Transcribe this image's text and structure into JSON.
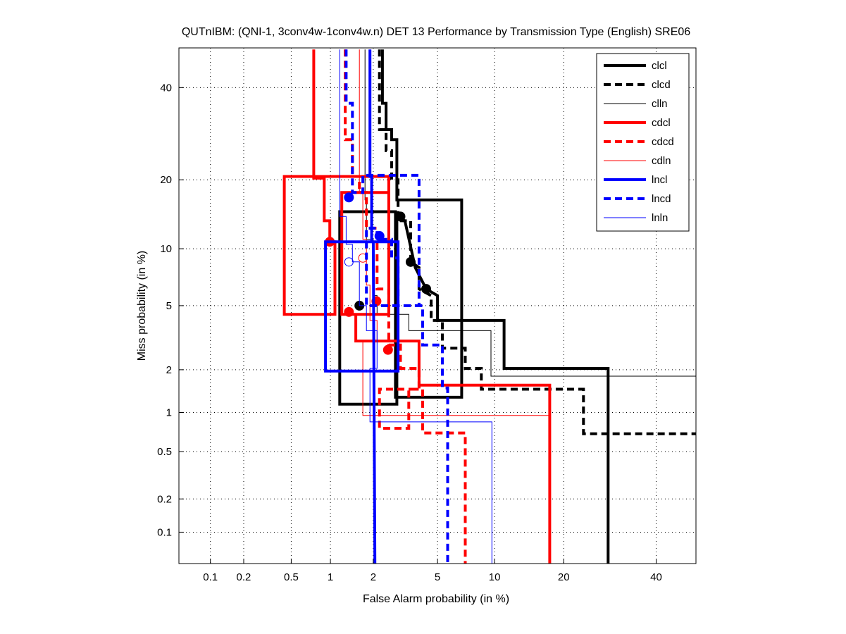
{
  "chart_data": {
    "type": "line",
    "title": "QUTnIBM: (QNI-1, 3conv4w-1conv4w.n) DET 13 Performance by Transmission Type (English) SRE06",
    "xlabel": "False Alarm probability (in %)",
    "ylabel": "Miss probability (in %)",
    "xscale": "normal-deviate",
    "yscale": "normal-deviate",
    "xlim": [
      0.05,
      50
    ],
    "ylim": [
      0.05,
      50
    ],
    "xticks": [
      0.1,
      0.2,
      0.5,
      1,
      2,
      5,
      10,
      20,
      40
    ],
    "xtick_labels": [
      "0.1",
      "0.2",
      "0.5",
      "1",
      "2",
      "5",
      "10",
      "20",
      "40"
    ],
    "yticks": [
      0.1,
      0.2,
      0.5,
      1,
      2,
      5,
      10,
      20,
      40
    ],
    "ytick_labels": [
      "0.1",
      "0.2",
      "0.5",
      "1",
      "2",
      "5",
      "10",
      "20",
      "40"
    ],
    "grid": true,
    "legend_position": "top-right",
    "series": [
      {
        "name": "clcl",
        "color": "#000000",
        "style": "solid-thick",
        "points": [
          [
            2.3,
            49.6
          ],
          [
            2.3,
            36.2
          ],
          [
            2.43,
            36.2
          ],
          [
            2.43,
            30.1
          ],
          [
            2.64,
            30.1
          ],
          [
            2.64,
            27.9
          ],
          [
            2.85,
            27.9
          ],
          [
            2.85,
            16.6
          ],
          [
            6.8,
            16.6
          ],
          [
            6.8,
            1.29
          ],
          [
            2.79,
            1.29
          ],
          [
            2.79,
            14.8
          ],
          [
            1.17,
            14.8
          ],
          [
            1.17,
            1.15
          ],
          [
            2.85,
            1.15
          ],
          [
            2.85,
            14.1
          ],
          [
            3.2,
            13.5
          ],
          [
            3.7,
            8.05
          ],
          [
            4.3,
            6.2
          ],
          [
            5.0,
            5.7
          ],
          [
            5.0,
            4.1
          ],
          [
            11.1,
            4.1
          ],
          [
            11.1,
            2.04
          ],
          [
            28.8,
            2.04
          ],
          [
            28.8,
            0.05
          ]
        ],
        "marker_points": [
          [
            3.0,
            14.1
          ],
          [
            4.3,
            6.2
          ]
        ],
        "marker": "circle/triangle"
      },
      {
        "name": "clcd",
        "color": "#000000",
        "style": "dashed-thick",
        "points": [
          [
            2.2,
            49.6
          ],
          [
            2.2,
            30.1
          ],
          [
            2.43,
            30.1
          ],
          [
            2.43,
            25.6
          ],
          [
            2.64,
            25.6
          ],
          [
            2.64,
            20
          ],
          [
            2.9,
            20
          ],
          [
            2.9,
            13.5
          ],
          [
            3.47,
            13.5
          ],
          [
            3.47,
            8.6
          ],
          [
            3.9,
            8.05
          ],
          [
            3.9,
            6.2
          ],
          [
            4.6,
            5.7
          ],
          [
            4.6,
            4.1
          ],
          [
            5.33,
            4.1
          ],
          [
            5.33,
            2.77
          ],
          [
            7.1,
            2.77
          ],
          [
            7.1,
            2.04
          ],
          [
            8.6,
            2.04
          ],
          [
            8.6,
            1.47
          ],
          [
            23.7,
            1.47
          ],
          [
            23.7,
            0.69
          ],
          [
            50,
            0.69
          ]
        ],
        "marker_points": [
          [
            3.47,
            8.6
          ]
        ],
        "marker": "circle"
      },
      {
        "name": "clln",
        "color": "#000000",
        "style": "solid-thin",
        "points": [
          [
            1.76,
            49.6
          ],
          [
            1.76,
            16.6
          ],
          [
            1.8,
            16.6
          ],
          [
            1.8,
            11.1
          ],
          [
            2.0,
            11.1
          ],
          [
            2.0,
            5.7
          ],
          [
            2.12,
            5.7
          ],
          [
            2.12,
            4.45
          ],
          [
            3.38,
            4.45
          ],
          [
            3.38,
            3.56
          ],
          [
            9.6,
            3.56
          ],
          [
            9.6,
            1.81
          ],
          [
            50,
            1.81
          ]
        ],
        "marker_points": [
          [
            1.61,
            5.0
          ]
        ],
        "marker": "diamond"
      },
      {
        "name": "cdcl",
        "color": "#ff0000",
        "style": "solid-thick",
        "points": [
          [
            0.75,
            49.6
          ],
          [
            0.75,
            20.3
          ],
          [
            0.9,
            20.3
          ],
          [
            0.9,
            13.5
          ],
          [
            0.99,
            13.5
          ],
          [
            0.99,
            10.8
          ],
          [
            1.08,
            10.8
          ],
          [
            1.08,
            4.45
          ],
          [
            0.44,
            4.45
          ],
          [
            0.44,
            20.6
          ],
          [
            2.53,
            20.6
          ],
          [
            2.53,
            4.45
          ],
          [
            1.21,
            4.45
          ],
          [
            1.21,
            17.8
          ],
          [
            2.53,
            17.8
          ],
          [
            2.53,
            4.45
          ],
          [
            1.36,
            4.45
          ],
          [
            1.52,
            4.45
          ],
          [
            1.52,
            3.07
          ],
          [
            3.9,
            3.07
          ],
          [
            3.9,
            1.57
          ],
          [
            17.6,
            1.57
          ],
          [
            17.6,
            0.05
          ]
        ],
        "marker_points": [
          [
            0.99,
            10.8
          ],
          [
            1.36,
            4.6
          ],
          [
            2.1,
            5.3
          ]
        ],
        "marker": "circle"
      },
      {
        "name": "cdcd",
        "color": "#ff0000",
        "style": "dashed-thick",
        "points": [
          [
            1.28,
            49.6
          ],
          [
            1.28,
            27.9
          ],
          [
            1.44,
            27.9
          ],
          [
            1.44,
            20.6
          ],
          [
            1.61,
            20.6
          ],
          [
            1.61,
            17.8
          ],
          [
            1.8,
            17.8
          ],
          [
            1.8,
            12.5
          ],
          [
            2.12,
            12.5
          ],
          [
            2.12,
            6.2
          ],
          [
            2.53,
            6.2
          ],
          [
            2.53,
            2.9
          ],
          [
            3.0,
            2.9
          ],
          [
            3.0,
            2.04
          ],
          [
            3.9,
            2.04
          ],
          [
            3.9,
            1.47
          ],
          [
            2.2,
            1.47
          ],
          [
            2.2,
            0.76
          ],
          [
            3.38,
            0.76
          ],
          [
            3.38,
            1.47
          ],
          [
            4.1,
            1.47
          ],
          [
            4.1,
            0.7
          ],
          [
            7.1,
            0.7
          ],
          [
            7.1,
            0.05
          ]
        ],
        "marker_points": [
          [
            2.5,
            2.7
          ]
        ],
        "marker": "triangle"
      },
      {
        "name": "cdln",
        "color": "#ff0000",
        "style": "solid-thin",
        "points": [
          [
            1.61,
            49.6
          ],
          [
            1.61,
            17.8
          ],
          [
            1.7,
            17.8
          ],
          [
            1.7,
            11.1
          ],
          [
            1.8,
            11.1
          ],
          [
            1.8,
            6.5
          ],
          [
            1.9,
            6.5
          ],
          [
            1.9,
            4.1
          ],
          [
            2.12,
            4.1
          ],
          [
            2.12,
            3.07
          ],
          [
            1.7,
            3.07
          ],
          [
            1.7,
            0.95
          ],
          [
            17.6,
            0.95
          ]
        ],
        "marker_points": [
          [
            1.7,
            9.0
          ]
        ],
        "marker": "circle-open"
      },
      {
        "name": "lncl",
        "color": "#0000ff",
        "style": "solid-thick",
        "points": [
          [
            1.9,
            49.6
          ],
          [
            1.9,
            20.6
          ],
          [
            1.95,
            20.6
          ],
          [
            1.95,
            10.8
          ],
          [
            2.9,
            10.8
          ],
          [
            2.9,
            1.96
          ],
          [
            0.92,
            1.96
          ],
          [
            0.92,
            10.8
          ],
          [
            2.0,
            10.8
          ],
          [
            2.05,
            0.05
          ]
        ],
        "marker_points": [
          [
            2.2,
            11.5
          ]
        ],
        "marker": "triangle"
      },
      {
        "name": "lncd",
        "color": "#0000ff",
        "style": "dashed-thick",
        "points": [
          [
            1.3,
            49.6
          ],
          [
            1.3,
            36.2
          ],
          [
            1.44,
            36.2
          ],
          [
            1.44,
            17.8
          ],
          [
            1.7,
            17.8
          ],
          [
            1.7,
            20.8
          ],
          [
            3.9,
            20.8
          ],
          [
            3.9,
            5.0
          ],
          [
            1.8,
            5.0
          ],
          [
            1.8,
            12.5
          ],
          [
            2.12,
            12.5
          ],
          [
            2.12,
            11.1
          ],
          [
            2.64,
            11.1
          ],
          [
            2.64,
            9.0
          ],
          [
            2.9,
            9.0
          ],
          [
            2.9,
            5.0
          ],
          [
            4.1,
            5.0
          ],
          [
            4.1,
            2.9
          ],
          [
            5.0,
            2.9
          ],
          [
            5.33,
            2.9
          ],
          [
            5.33,
            1.5
          ],
          [
            5.7,
            1.5
          ],
          [
            5.7,
            0.05
          ]
        ],
        "marker_points": [
          [
            1.36,
            17.0
          ]
        ],
        "marker": "circle"
      },
      {
        "name": "lnln",
        "color": "#0000ff",
        "style": "solid-thin",
        "points": [
          [
            1.17,
            49.6
          ],
          [
            1.17,
            14.1
          ],
          [
            1.3,
            14.1
          ],
          [
            1.3,
            10.5
          ],
          [
            1.44,
            10.5
          ],
          [
            1.44,
            8.6
          ],
          [
            1.61,
            8.6
          ],
          [
            1.61,
            5.0
          ],
          [
            1.8,
            5.0
          ],
          [
            1.8,
            3.56
          ],
          [
            2.12,
            3.56
          ],
          [
            2.12,
            2.04
          ],
          [
            1.9,
            2.04
          ],
          [
            1.9,
            0.85
          ],
          [
            9.7,
            0.85
          ],
          [
            9.7,
            0.05
          ]
        ],
        "marker_points": [
          [
            1.36,
            8.6
          ]
        ],
        "marker": "circle-open"
      }
    ]
  }
}
